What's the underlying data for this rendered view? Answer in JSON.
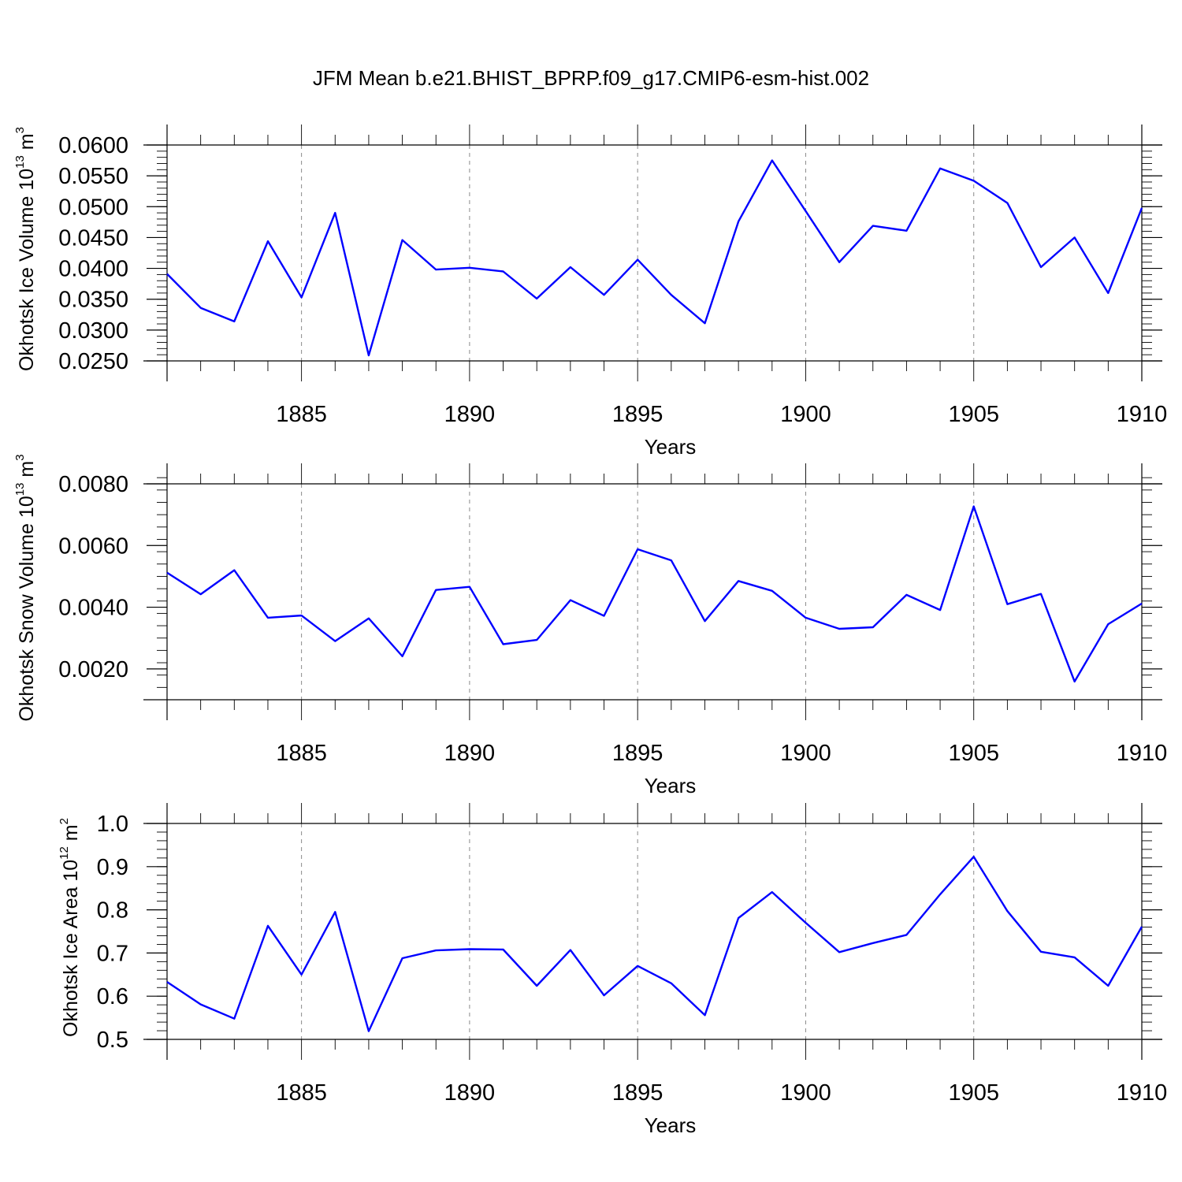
{
  "chart_data": [
    {
      "type": "line",
      "title": "JFM Mean b.e21.BHIST_BPRP.f09_g17.CMIP6-esm-hist.002",
      "xlabel": "Years",
      "ylabel": {
        "text": "Okhotsk Ice Volume 10",
        "sup": "13",
        "unit": " m",
        "unit_sup": "3"
      },
      "xlim": [
        1881,
        1910
      ],
      "ylim": [
        0.025,
        0.06
      ],
      "yticks": [
        0.025,
        0.03,
        0.035,
        0.04,
        0.045,
        0.05,
        0.055,
        0.06
      ],
      "yticklabels": [
        "0.0250",
        "0.0300",
        "0.0350",
        "0.0400",
        "0.0450",
        "0.0500",
        "0.0550",
        "0.0600"
      ],
      "yminor_step": 0.001,
      "xticks": [
        1885,
        1890,
        1895,
        1900,
        1905,
        1910
      ],
      "xticklabels": [
        "1885",
        "1890",
        "1895",
        "1900",
        "1905",
        "1910"
      ],
      "grid": "x-major dashed",
      "series": [
        {
          "name": "ice_volume",
          "color": "#0000ff",
          "x": [
            1881,
            1882,
            1883,
            1884,
            1885,
            1886,
            1887,
            1888,
            1889,
            1890,
            1891,
            1892,
            1893,
            1894,
            1895,
            1896,
            1897,
            1898,
            1899,
            1900,
            1901,
            1902,
            1903,
            1904,
            1905,
            1906,
            1907,
            1908,
            1909,
            1910
          ],
          "values": [
            0.0391,
            0.0336,
            0.0314,
            0.0444,
            0.0353,
            0.049,
            0.0259,
            0.0446,
            0.0398,
            0.0401,
            0.0395,
            0.0351,
            0.0402,
            0.0357,
            0.0414,
            0.0357,
            0.0311,
            0.0476,
            0.0575,
            0.0493,
            0.041,
            0.0469,
            0.0461,
            0.0562,
            0.0542,
            0.0506,
            0.0402,
            0.045,
            0.036,
            0.0498
          ]
        }
      ]
    },
    {
      "type": "line",
      "xlabel": "Years",
      "ylabel": {
        "text": "Okhotsk Snow Volume 10",
        "sup": "13",
        "unit": " m",
        "unit_sup": "3"
      },
      "xlim": [
        1881,
        1910
      ],
      "ylim": [
        0.001,
        0.008
      ],
      "yticks": [
        0.002,
        0.004,
        0.006,
        0.008
      ],
      "yticklabels": [
        "0.0020",
        "0.0040",
        "0.0060",
        "0.0080"
      ],
      "yminor_step": 0.0004,
      "xticks": [
        1885,
        1890,
        1895,
        1900,
        1905,
        1910
      ],
      "xticklabels": [
        "1885",
        "1890",
        "1895",
        "1900",
        "1905",
        "1910"
      ],
      "grid": "x-major dashed",
      "series": [
        {
          "name": "snow_volume",
          "color": "#0000ff",
          "x": [
            1881,
            1882,
            1883,
            1884,
            1885,
            1886,
            1887,
            1888,
            1889,
            1890,
            1891,
            1892,
            1893,
            1894,
            1895,
            1896,
            1897,
            1898,
            1899,
            1900,
            1901,
            1902,
            1903,
            1904,
            1905,
            1906,
            1907,
            1908,
            1909,
            1910
          ],
          "values": [
            0.00512,
            0.00442,
            0.0052,
            0.00366,
            0.00373,
            0.0029,
            0.00364,
            0.00241,
            0.00456,
            0.00466,
            0.0028,
            0.00294,
            0.00423,
            0.00372,
            0.00588,
            0.00552,
            0.00355,
            0.00485,
            0.00453,
            0.00366,
            0.0033,
            0.00335,
            0.0044,
            0.00391,
            0.00727,
            0.0041,
            0.00443,
            0.00159,
            0.00345,
            0.00412
          ]
        }
      ]
    },
    {
      "type": "line",
      "xlabel": "Years",
      "ylabel": {
        "text": "Okhotsk Ice Area 10",
        "sup": "12",
        "unit": " m",
        "unit_sup": "2"
      },
      "xlim": [
        1881,
        1910
      ],
      "ylim": [
        0.5,
        1.0
      ],
      "yticks": [
        0.5,
        0.6,
        0.7,
        0.8,
        0.9,
        1.0
      ],
      "yticklabels": [
        "0.5",
        "0.6",
        "0.7",
        "0.8",
        "0.9",
        "1.0"
      ],
      "yminor_step": 0.02,
      "xticks": [
        1885,
        1890,
        1895,
        1900,
        1905,
        1910
      ],
      "xticklabels": [
        "1885",
        "1890",
        "1895",
        "1900",
        "1905",
        "1910"
      ],
      "grid": "x-major dashed",
      "series": [
        {
          "name": "ice_area",
          "color": "#0000ff",
          "x": [
            1881,
            1882,
            1883,
            1884,
            1885,
            1886,
            1887,
            1888,
            1889,
            1890,
            1891,
            1892,
            1893,
            1894,
            1895,
            1896,
            1897,
            1898,
            1899,
            1900,
            1901,
            1902,
            1903,
            1904,
            1905,
            1906,
            1907,
            1908,
            1909,
            1910
          ],
          "values": [
            0.633,
            0.581,
            0.548,
            0.763,
            0.65,
            0.795,
            0.519,
            0.688,
            0.706,
            0.709,
            0.708,
            0.624,
            0.707,
            0.602,
            0.67,
            0.63,
            0.556,
            0.781,
            0.841,
            0.77,
            0.702,
            0.723,
            0.742,
            0.836,
            0.923,
            0.797,
            0.703,
            0.69,
            0.624,
            0.761
          ]
        }
      ]
    }
  ]
}
